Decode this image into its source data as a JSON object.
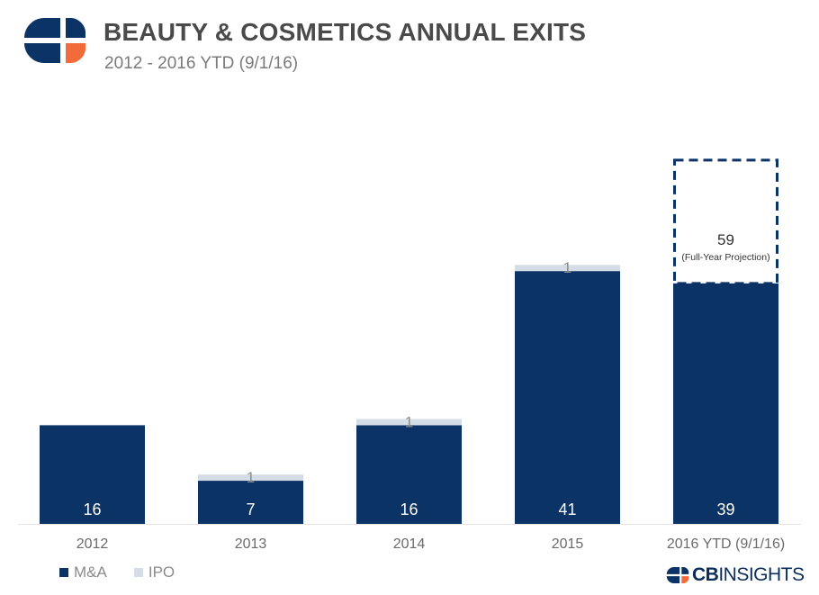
{
  "header": {
    "title": "BEAUTY & COSMETICS ANNUAL EXITS",
    "subtitle": "2012 - 2016 YTD (9/1/16)"
  },
  "colors": {
    "ma": "#0b3365",
    "ipo": "#d4dde6",
    "logo_orange": "#f26b3a",
    "axis_text": "#6b6b6b"
  },
  "chart_data": {
    "type": "bar",
    "stacked": true,
    "categories": [
      "2012",
      "2013",
      "2014",
      "2015",
      "2016 YTD (9/1/16)"
    ],
    "series": [
      {
        "name": "M&A",
        "values": [
          16,
          7,
          16,
          41,
          39
        ]
      },
      {
        "name": "IPO",
        "values": [
          0,
          1,
          1,
          1,
          0
        ]
      }
    ],
    "value_labels": {
      "ma": [
        "16",
        "7",
        "16",
        "41",
        "39"
      ],
      "ipo": [
        "",
        "1",
        "1",
        "1",
        ""
      ]
    },
    "projection": {
      "category": "2016 YTD (9/1/16)",
      "value": 59,
      "label": "59",
      "note": "(Full-Year Projection)"
    },
    "legend_position": "bottom-left",
    "grid": false
  },
  "legend": [
    {
      "label": "M&A",
      "color": "#0b3365"
    },
    {
      "label": "IPO",
      "color": "#d4dde6"
    }
  ],
  "brand": {
    "icon": "cb-insights-logo",
    "bold": "CB",
    "light": "INSIGHTS"
  }
}
